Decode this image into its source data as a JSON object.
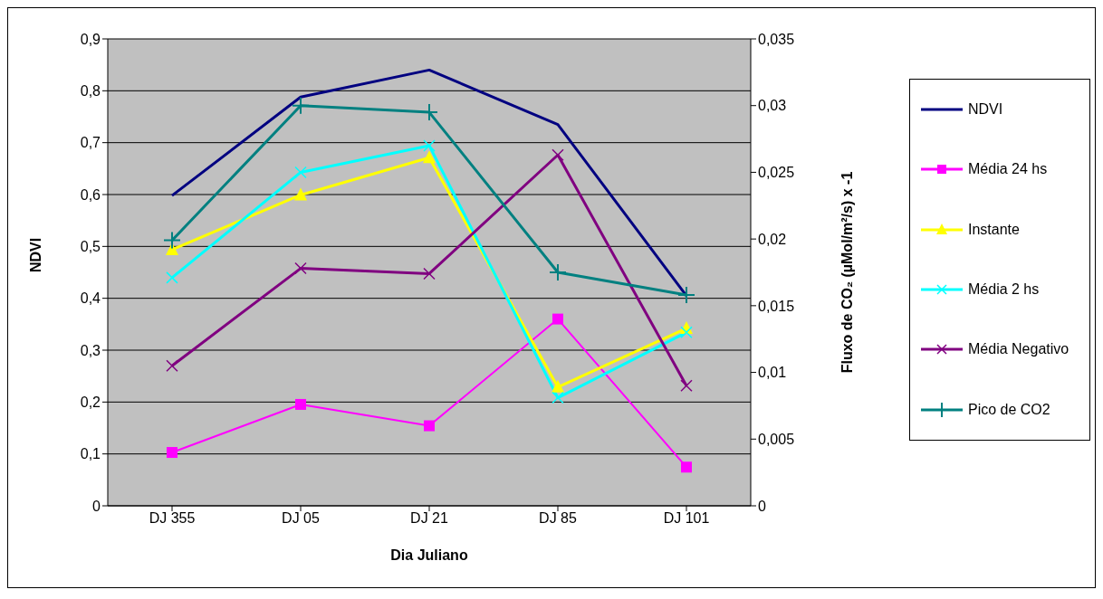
{
  "chart_data": {
    "type": "line",
    "xlabel": "Dia Juliano",
    "ylabel": "NDVI",
    "y2label": "Fluxo de CO₂ (µMol/m²/s) x -1",
    "categories": [
      "DJ 355",
      "DJ 05",
      "DJ 21",
      "DJ 85",
      "DJ 101"
    ],
    "series": [
      {
        "name": "NDVI",
        "color": "#000080",
        "marker": "none",
        "values": [
          0.598,
          0.788,
          0.84,
          0.735,
          0.405
        ]
      },
      {
        "name": "Média 24 hs",
        "color": "#ff00ff",
        "marker": "square",
        "axis": "y2",
        "values": [
          0.004,
          0.0076,
          0.006,
          0.014,
          0.0029
        ]
      },
      {
        "name": "Instante",
        "color": "#ffff00",
        "marker": "triangle",
        "axis": "y2",
        "values": [
          0.0192,
          0.0233,
          0.0261,
          0.0089,
          0.0133
        ]
      },
      {
        "name": "Média 2 hs",
        "color": "#00ffff",
        "marker": "cross",
        "axis": "y2",
        "values": [
          0.0171,
          0.025,
          0.027,
          0.0081,
          0.013
        ]
      },
      {
        "name": "Média Negativo",
        "color": "#800080",
        "marker": "cross",
        "axis": "y2",
        "values": [
          0.0105,
          0.0178,
          0.0174,
          0.0263,
          0.009
        ]
      },
      {
        "name": "Pico de CO2",
        "color": "#008080",
        "marker": "plus",
        "axis": "y2",
        "values": [
          0.0199,
          0.03,
          0.0295,
          0.0175,
          0.0158
        ]
      }
    ],
    "ylim": [
      0,
      0.9
    ],
    "yticks": [
      0,
      {
        "value": 0.1,
        "label": "0,1"
      },
      {
        "value": 0.2,
        "label": "0,2"
      },
      {
        "value": 0.3,
        "label": "0,3"
      },
      {
        "value": 0.4,
        "label": "0,4"
      },
      {
        "value": 0.5,
        "label": "0,5"
      },
      {
        "value": 0.6,
        "label": "0,6"
      },
      {
        "value": 0.7,
        "label": "0,7"
      },
      {
        "value": 0.8,
        "label": "0,8"
      },
      {
        "value": 0.9,
        "label": "0,9"
      }
    ],
    "y2lim": [
      0,
      0.035
    ],
    "y2ticks": [
      0,
      {
        "value": 0.005,
        "label": "0,005"
      },
      {
        "value": 0.01,
        "label": "0,01"
      },
      {
        "value": 0.015,
        "label": "0,015"
      },
      {
        "value": 0.02,
        "label": "0,02"
      },
      {
        "value": 0.025,
        "label": "0,025"
      },
      {
        "value": 0.03,
        "label": "0,03"
      },
      {
        "value": 0.035,
        "label": "0,035"
      }
    ],
    "grid": "y",
    "legend": "right"
  }
}
